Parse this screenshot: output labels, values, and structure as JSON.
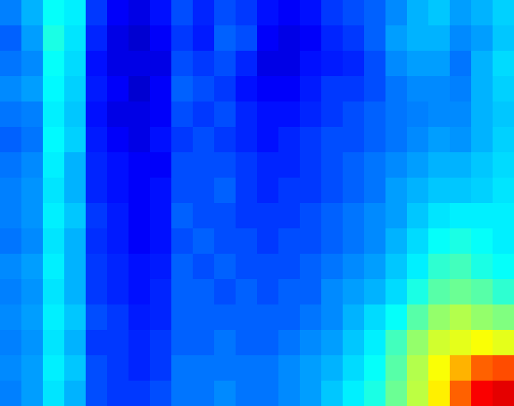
{
  "chart_data": {
    "type": "heatmap",
    "tick_labels": false,
    "zlim": [
      0,
      1
    ],
    "cells": [
      [
        0.25,
        0.3,
        0.38,
        0.36,
        0.18,
        0.12,
        0.1,
        0.14,
        0.2,
        0.16,
        0.2,
        0.18,
        0.14,
        0.12,
        0.14,
        0.18,
        0.2,
        0.22,
        0.26,
        0.3,
        0.32,
        0.28,
        0.3,
        0.33
      ],
      [
        0.22,
        0.28,
        0.4,
        0.35,
        0.16,
        0.1,
        0.08,
        0.12,
        0.18,
        0.15,
        0.22,
        0.2,
        0.12,
        0.1,
        0.12,
        0.16,
        0.18,
        0.22,
        0.28,
        0.3,
        0.3,
        0.26,
        0.28,
        0.32
      ],
      [
        0.24,
        0.26,
        0.38,
        0.34,
        0.14,
        0.1,
        0.1,
        0.1,
        0.2,
        0.18,
        0.2,
        0.16,
        0.1,
        0.1,
        0.14,
        0.15,
        0.16,
        0.2,
        0.26,
        0.28,
        0.28,
        0.24,
        0.3,
        0.34
      ],
      [
        0.26,
        0.28,
        0.37,
        0.33,
        0.15,
        0.12,
        0.08,
        0.12,
        0.22,
        0.2,
        0.18,
        0.14,
        0.12,
        0.12,
        0.15,
        0.18,
        0.18,
        0.2,
        0.24,
        0.26,
        0.26,
        0.25,
        0.3,
        0.33
      ],
      [
        0.24,
        0.25,
        0.36,
        0.32,
        0.14,
        0.1,
        0.1,
        0.12,
        0.2,
        0.18,
        0.2,
        0.16,
        0.14,
        0.14,
        0.16,
        0.18,
        0.2,
        0.22,
        0.24,
        0.25,
        0.26,
        0.26,
        0.3,
        0.32
      ],
      [
        0.22,
        0.24,
        0.37,
        0.33,
        0.15,
        0.12,
        0.1,
        0.14,
        0.18,
        0.2,
        0.18,
        0.16,
        0.14,
        0.16,
        0.18,
        0.2,
        0.2,
        0.22,
        0.24,
        0.26,
        0.28,
        0.27,
        0.3,
        0.33
      ],
      [
        0.24,
        0.26,
        0.36,
        0.3,
        0.16,
        0.14,
        0.12,
        0.12,
        0.2,
        0.2,
        0.2,
        0.18,
        0.16,
        0.16,
        0.18,
        0.2,
        0.22,
        0.24,
        0.26,
        0.28,
        0.3,
        0.3,
        0.32,
        0.34
      ],
      [
        0.25,
        0.27,
        0.35,
        0.3,
        0.16,
        0.14,
        0.12,
        0.14,
        0.2,
        0.2,
        0.22,
        0.18,
        0.16,
        0.18,
        0.18,
        0.2,
        0.22,
        0.24,
        0.28,
        0.3,
        0.32,
        0.32,
        0.33,
        0.35
      ],
      [
        0.25,
        0.27,
        0.36,
        0.32,
        0.18,
        0.15,
        0.12,
        0.14,
        0.22,
        0.2,
        0.2,
        0.18,
        0.18,
        0.18,
        0.2,
        0.22,
        0.24,
        0.26,
        0.28,
        0.32,
        0.35,
        0.36,
        0.36,
        0.36
      ],
      [
        0.24,
        0.26,
        0.35,
        0.3,
        0.17,
        0.15,
        0.12,
        0.14,
        0.2,
        0.22,
        0.2,
        0.2,
        0.18,
        0.2,
        0.2,
        0.22,
        0.24,
        0.26,
        0.3,
        0.34,
        0.38,
        0.4,
        0.38,
        0.36
      ],
      [
        0.26,
        0.28,
        0.36,
        0.3,
        0.18,
        0.16,
        0.14,
        0.15,
        0.22,
        0.2,
        0.22,
        0.2,
        0.2,
        0.2,
        0.22,
        0.24,
        0.26,
        0.28,
        0.32,
        0.36,
        0.42,
        0.44,
        0.4,
        0.38
      ],
      [
        0.25,
        0.27,
        0.35,
        0.3,
        0.18,
        0.16,
        0.14,
        0.16,
        0.22,
        0.22,
        0.2,
        0.22,
        0.2,
        0.22,
        0.22,
        0.26,
        0.28,
        0.3,
        0.34,
        0.4,
        0.46,
        0.48,
        0.46,
        0.42
      ],
      [
        0.26,
        0.28,
        0.36,
        0.32,
        0.2,
        0.18,
        0.15,
        0.16,
        0.22,
        0.22,
        0.22,
        0.22,
        0.22,
        0.22,
        0.24,
        0.26,
        0.3,
        0.34,
        0.38,
        0.46,
        0.52,
        0.55,
        0.52,
        0.5
      ],
      [
        0.25,
        0.27,
        0.35,
        0.3,
        0.18,
        0.18,
        0.16,
        0.18,
        0.22,
        0.22,
        0.24,
        0.22,
        0.22,
        0.24,
        0.26,
        0.28,
        0.32,
        0.36,
        0.44,
        0.52,
        0.58,
        0.6,
        0.62,
        0.6
      ],
      [
        0.26,
        0.28,
        0.36,
        0.32,
        0.2,
        0.18,
        0.16,
        0.18,
        0.24,
        0.24,
        0.24,
        0.24,
        0.24,
        0.26,
        0.28,
        0.3,
        0.34,
        0.38,
        0.46,
        0.55,
        0.62,
        0.7,
        0.78,
        0.8
      ],
      [
        0.25,
        0.28,
        0.35,
        0.3,
        0.2,
        0.18,
        0.18,
        0.2,
        0.24,
        0.24,
        0.26,
        0.24,
        0.24,
        0.26,
        0.28,
        0.32,
        0.36,
        0.4,
        0.48,
        0.56,
        0.64,
        0.78,
        0.88,
        0.9
      ]
    ]
  }
}
